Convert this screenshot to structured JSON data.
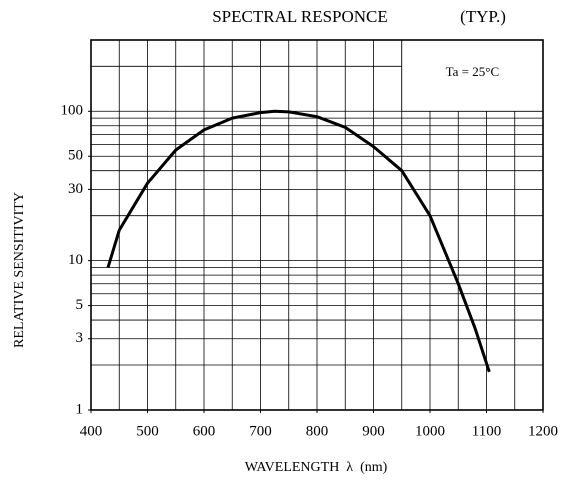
{
  "chart_data": {
    "type": "line",
    "title": "SPECTRAL RESPONCE",
    "subtitle": "(TYP.)",
    "xlabel": "WAVELENGTH  λ  (nm)",
    "ylabel": "RELATIVE SENSITIVITY",
    "annotation": "Ta = 25°C",
    "x": [
      430,
      450,
      500,
      550,
      600,
      650,
      700,
      725,
      750,
      800,
      850,
      900,
      950,
      1000,
      1050,
      1080,
      1105
    ],
    "series": [
      {
        "name": "Relative sensitivity",
        "color": "#000000",
        "values": [
          9,
          16,
          33,
          55,
          75,
          90,
          98,
          100,
          99,
          92,
          78,
          58,
          40,
          20,
          7,
          3.5,
          1.8
        ]
      }
    ],
    "xlim": [
      400,
      1200
    ],
    "xticks": [
      400,
      500,
      600,
      700,
      800,
      900,
      1000,
      1100,
      1200
    ],
    "xgrid": [
      400,
      450,
      500,
      550,
      600,
      650,
      700,
      750,
      800,
      850,
      900,
      950,
      1000,
      1050,
      1100,
      1150,
      1200
    ],
    "ylim": [
      1,
      300
    ],
    "yscale": "log",
    "yticks": [
      1,
      3,
      5,
      10,
      30,
      50,
      100
    ],
    "ygrid": [
      1,
      2,
      3,
      4,
      5,
      6,
      7,
      8,
      9,
      10,
      20,
      30,
      40,
      50,
      60,
      70,
      80,
      90,
      100,
      200
    ],
    "grid": true
  }
}
